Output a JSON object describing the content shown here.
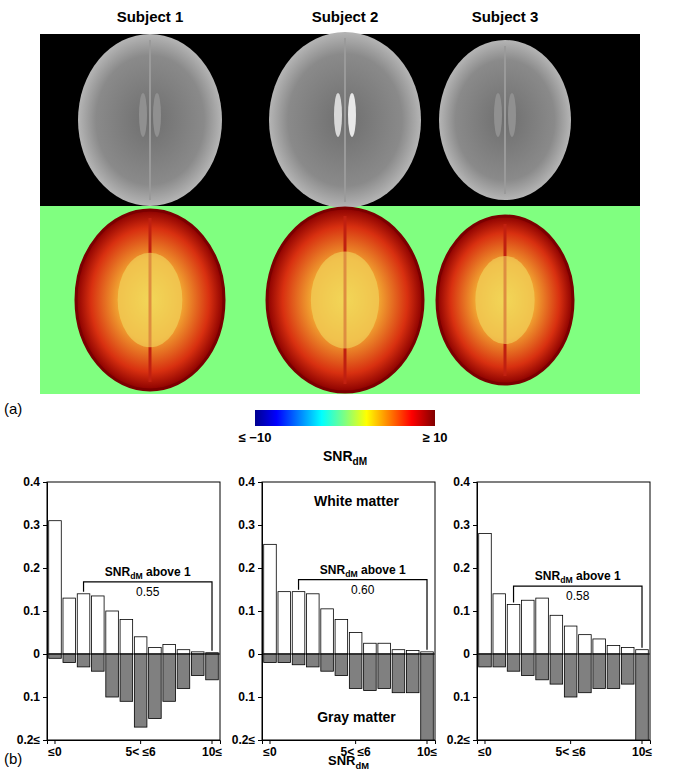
{
  "panel_a": {
    "label": "(a)",
    "subjects": [
      "Subject 1",
      "Subject 2",
      "Subject 3"
    ],
    "colorbar": {
      "range": [
        -10,
        10
      ],
      "ticks": [
        {
          "value": -10,
          "label": "≤ −10"
        },
        {
          "value": 10,
          "label": "≥ 10"
        }
      ],
      "label": [
        "SNR",
        "dM"
      ]
    }
  },
  "panel_b": {
    "label": "(b)",
    "xlabel": [
      "SNR",
      "dM"
    ]
  },
  "chart_data": [
    {
      "type": "bar",
      "categories": [
        "≤0",
        null,
        null,
        null,
        null,
        null,
        "5< ≤6",
        null,
        null,
        null,
        null,
        "10≤"
      ],
      "series": [
        {
          "color": "#ffffff",
          "values": [
            0.31,
            0.13,
            0.14,
            0.135,
            0.1,
            0.08,
            0.04,
            0.015,
            0.022,
            0.01,
            0.005,
            0.003
          ]
        },
        {
          "color": "#808080",
          "axis": "y2",
          "values": [
            0.01,
            0.02,
            0.03,
            0.04,
            0.1,
            0.11,
            0.17,
            0.15,
            0.11,
            0.08,
            0.05,
            0.06
          ]
        }
      ],
      "ylim": [
        0,
        0.4
      ],
      "yticks": [
        0,
        0.1,
        0.2,
        0.3,
        0.4
      ],
      "y2lim": [
        0,
        0.2
      ],
      "y2ticks": [
        0.1,
        {
          "value": 0.2,
          "label": "0.2≤"
        }
      ],
      "annotation": {
        "text": [
          "SNR",
          "dM",
          " above 1"
        ],
        "value": 0.55
      }
    },
    {
      "type": "bar",
      "categories": [
        "≤0",
        null,
        null,
        null,
        null,
        null,
        "5< ≤6",
        null,
        null,
        null,
        null,
        "10≤"
      ],
      "series": [
        {
          "name": "White matter",
          "color": "#ffffff",
          "values": [
            0.255,
            0.145,
            0.145,
            0.14,
            0.105,
            0.08,
            0.05,
            0.025,
            0.025,
            0.01,
            0.008,
            0.005
          ]
        },
        {
          "name": "Gray matter",
          "color": "#808080",
          "axis": "y2",
          "values": [
            0.02,
            0.02,
            0.025,
            0.03,
            0.04,
            0.05,
            0.08,
            0.085,
            0.08,
            0.09,
            0.09,
            0.2
          ]
        }
      ],
      "ylim": [
        0,
        0.4
      ],
      "yticks": [
        0,
        0.1,
        0.2,
        0.3,
        0.4
      ],
      "y2lim": [
        0,
        0.2
      ],
      "y2ticks": [
        0.1,
        {
          "value": 0.2,
          "label": "0.2≤"
        }
      ],
      "annotation": {
        "text": [
          "SNR",
          "dM",
          " above 1"
        ],
        "value": 0.6
      }
    },
    {
      "type": "bar",
      "categories": [
        "≤0",
        null,
        null,
        null,
        null,
        null,
        "5< ≤6",
        null,
        null,
        null,
        null,
        "10≤"
      ],
      "series": [
        {
          "color": "#ffffff",
          "values": [
            0.28,
            0.14,
            0.115,
            0.125,
            0.13,
            0.09,
            0.065,
            0.045,
            0.035,
            0.02,
            0.015,
            0.01
          ]
        },
        {
          "color": "#808080",
          "axis": "y2",
          "values": [
            0.03,
            0.03,
            0.04,
            0.05,
            0.06,
            0.07,
            0.1,
            0.09,
            0.08,
            0.08,
            0.07,
            0.2
          ]
        }
      ],
      "ylim": [
        0,
        0.4
      ],
      "yticks": [
        0,
        0.1,
        0.2,
        0.3,
        0.4
      ],
      "y2lim": [
        0,
        0.2
      ],
      "y2ticks": [
        0.1,
        {
          "value": 0.2,
          "label": "0.2≤"
        }
      ],
      "annotation": {
        "text": [
          "SNR",
          "dM",
          " above 1"
        ],
        "value": 0.58
      }
    }
  ]
}
